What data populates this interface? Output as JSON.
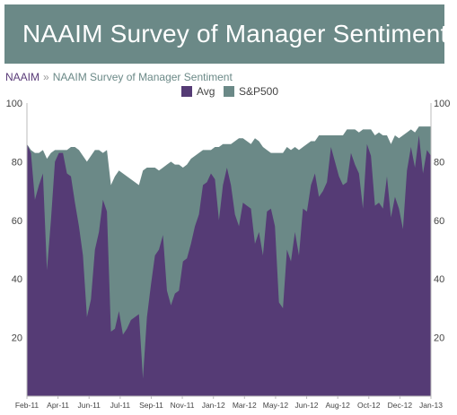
{
  "banner": {
    "title": "NAAIM Survey of Manager Sentiment"
  },
  "breadcrumb": {
    "home": "NAAIM",
    "separator": "»",
    "current": "NAAIM Survey of Manager Sentiment"
  },
  "colors": {
    "avg": "#553b75",
    "sp500": "#6b8987",
    "banner": "#6b8987",
    "axis": "#444444"
  },
  "chart_data": {
    "type": "area",
    "title": "",
    "xlabel": "",
    "ylabel": "",
    "ylim": [
      0,
      100
    ],
    "yticks": [
      20,
      40,
      60,
      80,
      100
    ],
    "legend_position": "top-center",
    "grid": false,
    "x_tick_labels": [
      "Feb-11",
      "Apr-11",
      "Jun-11",
      "Jul-11",
      "Sep-11",
      "Nov-11",
      "Jan-12",
      "Mar-12",
      "May-12",
      "Jun-12",
      "Aug-12",
      "Oct-12",
      "Dec-12",
      "Jan-13"
    ],
    "series": [
      {
        "name": "Avg",
        "values": [
          86,
          83,
          67,
          72,
          76,
          43,
          60,
          80,
          83,
          83,
          76,
          75,
          66,
          58,
          48,
          27,
          33,
          50,
          56,
          67,
          63,
          22,
          23,
          29,
          21,
          23,
          26,
          27,
          28,
          6,
          27,
          38,
          48,
          50,
          55,
          36,
          31,
          35,
          36,
          46,
          47,
          52,
          58,
          62,
          72,
          73,
          76,
          74,
          60,
          72,
          78,
          72,
          62,
          58,
          66,
          65,
          64,
          52,
          56,
          48,
          63,
          64,
          58,
          32,
          30,
          50,
          46,
          56,
          48,
          64,
          63,
          72,
          76,
          68,
          70,
          73,
          85,
          80,
          75,
          72,
          73,
          83,
          79,
          76,
          64,
          86,
          82,
          65,
          66,
          64,
          75,
          61,
          68,
          64,
          57,
          77,
          85,
          78,
          89,
          76,
          84,
          82
        ]
      },
      {
        "name": "S&P500",
        "values": [
          86,
          84,
          83,
          83,
          84,
          81,
          83,
          84,
          84,
          84,
          84,
          85,
          85,
          84,
          82,
          80,
          82,
          84,
          84,
          83,
          84,
          72,
          75,
          77,
          76,
          75,
          74,
          73,
          72,
          77,
          78,
          78,
          78,
          77,
          78,
          79,
          80,
          79,
          79,
          78,
          79,
          81,
          82,
          83,
          84,
          84,
          84,
          85,
          85,
          86,
          86,
          86,
          87,
          88,
          88,
          87,
          86,
          88,
          87,
          85,
          84,
          83,
          83,
          83,
          83,
          85,
          84,
          85,
          84,
          85,
          86,
          87,
          87,
          89,
          89,
          89,
          89,
          89,
          89,
          89,
          91,
          91,
          91,
          90,
          91,
          91,
          91,
          89,
          90,
          89,
          89,
          86,
          89,
          88,
          89,
          90,
          91,
          90,
          92,
          92,
          92,
          92
        ]
      }
    ]
  }
}
